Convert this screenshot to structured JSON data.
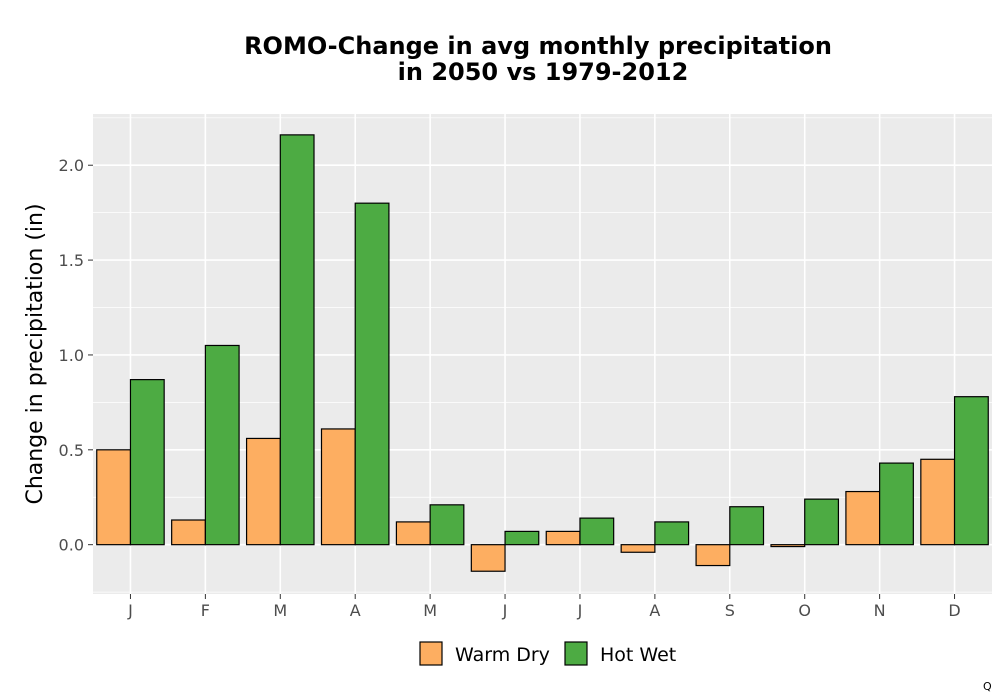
{
  "chart_data": {
    "type": "bar",
    "title_lines": [
      "ROMO-Change in avg monthly precipitation",
      "in 2050 vs 1979-2012"
    ],
    "xlabel": "",
    "ylabel": "Change in precipitation (in)",
    "categories": [
      "J",
      "F",
      "M",
      "A",
      "M",
      "J",
      "J",
      "A",
      "S",
      "O",
      "N",
      "D"
    ],
    "series": [
      {
        "name": "Warm Dry",
        "color": "#fdae61",
        "values": [
          0.5,
          0.13,
          0.56,
          0.61,
          0.12,
          -0.14,
          0.07,
          -0.04,
          -0.11,
          -0.01,
          0.28,
          0.45
        ]
      },
      {
        "name": "Hot Wet",
        "color": "#4dab43",
        "values": [
          0.87,
          1.05,
          2.16,
          1.8,
          0.21,
          0.07,
          0.14,
          0.12,
          0.2,
          0.24,
          0.43,
          0.78
        ]
      }
    ],
    "ylim": [
      -0.26,
      2.27
    ],
    "yticks": [
      0.0,
      0.5,
      1.0,
      1.5,
      2.0
    ],
    "ytick_labels": [
      "0.0",
      "0.5",
      "1.0",
      "1.5",
      "2.0"
    ],
    "grid": true,
    "legend_position": "bottom",
    "panel_color": "#ebebeb",
    "grid_color": "#ffffff",
    "bar_outline_color": "#000000"
  },
  "caption": "Q"
}
